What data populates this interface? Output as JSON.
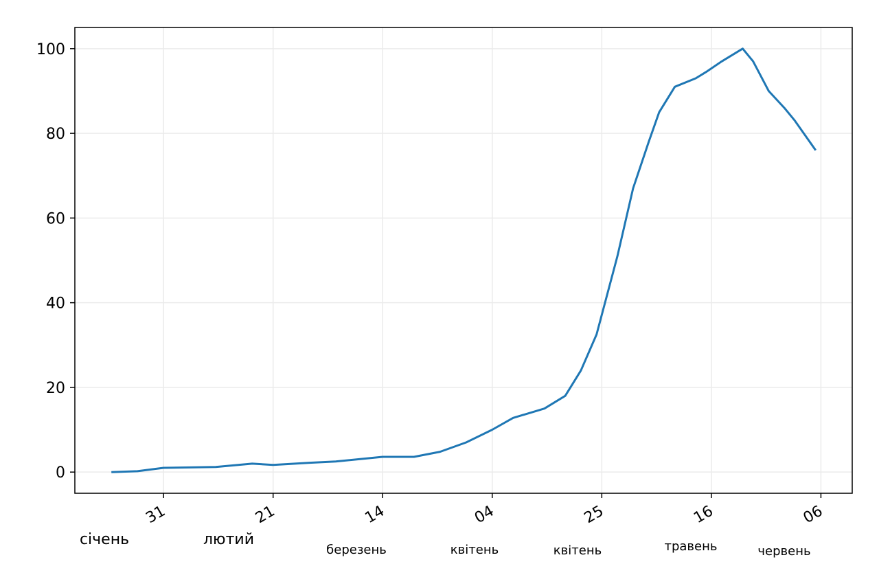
{
  "chart_data": {
    "type": "line",
    "x": [
      "01-21",
      "01-26",
      "01-31",
      "02-10",
      "02-17",
      "02-21",
      "02-28",
      "03-05",
      "03-14",
      "03-20",
      "03-25",
      "03-30",
      "04-04",
      "04-08",
      "04-14",
      "04-18",
      "04-21",
      "04-24",
      "04-28",
      "05-01",
      "05-04",
      "05-06",
      "05-09",
      "05-13",
      "05-15",
      "05-18",
      "05-22",
      "05-24",
      "05-27",
      "05-30",
      "06-01",
      "06-05"
    ],
    "series": [
      {
        "color": "#1f77b4",
        "values": [
          0,
          0.2,
          1,
          1.2,
          2,
          1.7,
          2.2,
          2.5,
          3.6,
          3.6,
          4.8,
          7,
          10,
          12.8,
          15,
          18,
          24,
          32.5,
          51,
          67,
          78,
          85,
          91,
          93,
          94.5,
          97,
          100,
          97,
          90,
          86,
          83,
          76
        ]
      }
    ],
    "xlim": [
      "01-14",
      "06-12"
    ],
    "xticks": [
      {
        "value": "01-31",
        "label": "31",
        "month": "січень"
      },
      {
        "value": "02-21",
        "label": "21",
        "month": "лютий"
      },
      {
        "value": "03-14",
        "label": "14",
        "month": "березень"
      },
      {
        "value": "04-04",
        "label": "04",
        "month": "квітень"
      },
      {
        "value": "04-25",
        "label": "25",
        "month": "квітень"
      },
      {
        "value": "05-16",
        "label": "16",
        "month": "травень"
      },
      {
        "value": "06-06",
        "label": "06",
        "month": "червень"
      }
    ],
    "ylim": [
      -5,
      105
    ],
    "yticks": [
      0,
      20,
      40,
      60,
      80,
      100
    ],
    "grid": true
  }
}
